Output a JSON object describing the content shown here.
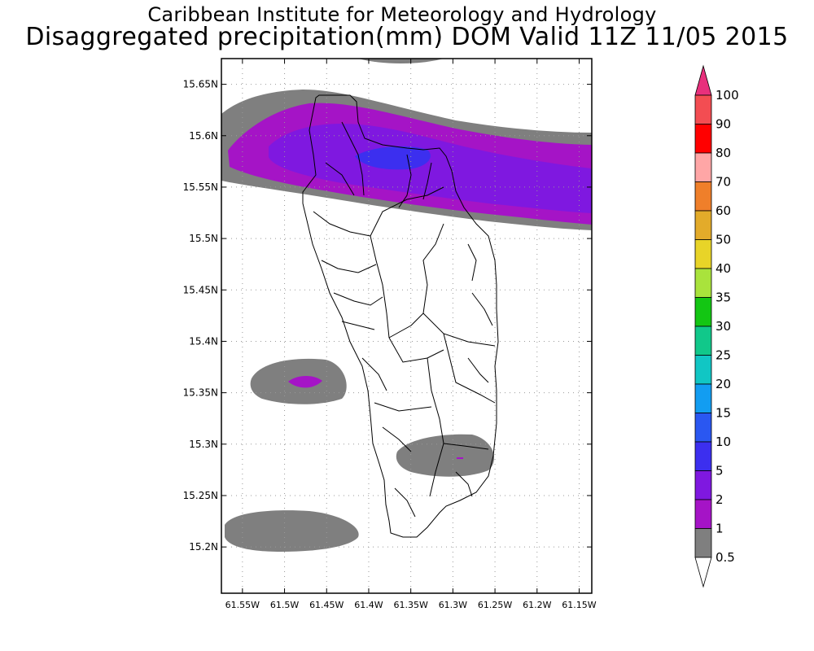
{
  "header": {
    "title": "Caribbean Institute for Meteorology and Hydrology",
    "subtitle": "Disaggregated precipitation(mm) DOM Valid 11Z 11/05 2015"
  },
  "map": {
    "lat_range": [
      15.155,
      15.675
    ],
    "lon_range": [
      -61.575,
      -61.135
    ],
    "grid": true,
    "lat_ticks": [
      {
        "value": 15.2,
        "label": "15.2N"
      },
      {
        "value": 15.25,
        "label": "15.25N"
      },
      {
        "value": 15.3,
        "label": "15.3N"
      },
      {
        "value": 15.35,
        "label": "15.35N"
      },
      {
        "value": 15.4,
        "label": "15.4N"
      },
      {
        "value": 15.45,
        "label": "15.45N"
      },
      {
        "value": 15.5,
        "label": "15.5N"
      },
      {
        "value": 15.55,
        "label": "15.55N"
      },
      {
        "value": 15.6,
        "label": "15.6N"
      },
      {
        "value": 15.65,
        "label": "15.65N"
      }
    ],
    "lon_ticks": [
      {
        "value": -61.55,
        "label": "61.55W"
      },
      {
        "value": -61.5,
        "label": "61.5W"
      },
      {
        "value": -61.45,
        "label": "61.45W"
      },
      {
        "value": -61.4,
        "label": "61.4W"
      },
      {
        "value": -61.35,
        "label": "61.35W"
      },
      {
        "value": -61.3,
        "label": "61.3W"
      },
      {
        "value": -61.25,
        "label": "61.25W"
      },
      {
        "value": -61.2,
        "label": "61.2W"
      },
      {
        "value": -61.15,
        "label": "61.15W"
      }
    ]
  },
  "legend": {
    "labels": [
      "100",
      "90",
      "80",
      "70",
      "60",
      "50",
      "40",
      "35",
      "30",
      "25",
      "20",
      "15",
      "10",
      "5",
      "2",
      "1",
      "0.5"
    ],
    "colors": [
      "#f34d52",
      "#ff0000",
      "#ffa6a6",
      "#ef7f2a",
      "#e3ab2a",
      "#e8d428",
      "#a9e33c",
      "#13c613",
      "#11c88a",
      "#11c6c4",
      "#129df1",
      "#2a57f1",
      "#3c2fef",
      "#7f18e0",
      "#a514c6",
      "#7f7f7f"
    ],
    "top_arrow_color": "#e8307c",
    "bottom_arrow_color": "#ffffff",
    "contour_colors": {
      "0.5": "#7f7f7f",
      "1": "#a514c6",
      "2": "#7f18e0",
      "5": "#3c2fef"
    }
  }
}
